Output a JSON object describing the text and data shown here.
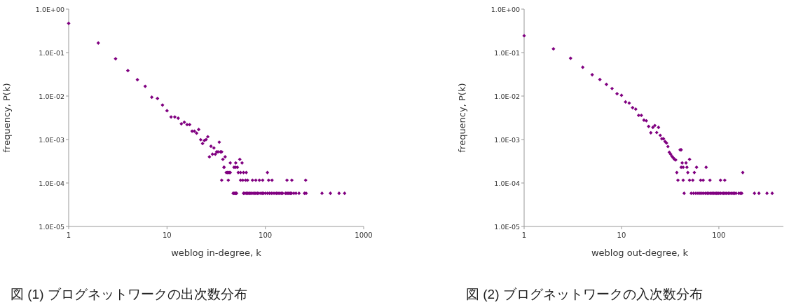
{
  "chart_data": [
    {
      "type": "scatter",
      "xlabel": "weblog in-degree, k",
      "ylabel": "frequency, P(k)",
      "log": "xy",
      "grid": false,
      "marker": "diamond",
      "xlim": [
        1,
        1000
      ],
      "xticks": [
        1,
        10,
        100,
        1000
      ],
      "ylim": [
        1e-05,
        1
      ],
      "yticks": [
        {
          "value": 1,
          "label": "1.0E+00"
        },
        {
          "value": 0.1,
          "label": "1.0E-01"
        },
        {
          "value": 0.01,
          "label": "1.0E-02"
        },
        {
          "value": 0.001,
          "label": "1.0E-03"
        },
        {
          "value": 0.0001,
          "label": "1.0E-04"
        },
        {
          "value": 1e-05,
          "label": "1.0E-05"
        }
      ],
      "annotations": [
        "図 (1) ブログネットワークの出次数分布"
      ],
      "series": [
        {
          "color": "#800080",
          "x": [
            1,
            2,
            3,
            4,
            5,
            6,
            7,
            8,
            9,
            10,
            11,
            12,
            13,
            14,
            15,
            16,
            17,
            18,
            19,
            20,
            21,
            22,
            23,
            24,
            25,
            26,
            27,
            28,
            29,
            30,
            31,
            32,
            33,
            34,
            35,
            36,
            37,
            38,
            39,
            36,
            42,
            56,
            59,
            63,
            66,
            74,
            80,
            87,
            94,
            108,
            117,
            166,
            186,
            257,
            40,
            41,
            42,
            43,
            44,
            53,
            56,
            60,
            64,
            105,
            38,
            48,
            50,
            52,
            44,
            50,
            58,
            55,
            47,
            48,
            49,
            50,
            51,
            60,
            62,
            64,
            66,
            68,
            70,
            72,
            75,
            78,
            80,
            83,
            86,
            90,
            93,
            96,
            100,
            105,
            110,
            115,
            120,
            125,
            130,
            135,
            140,
            145,
            150,
            160,
            165,
            170,
            175,
            180,
            185,
            195,
            205,
            220,
            250,
            260,
            377,
            459,
            562,
            640
          ],
          "values": [
            0.47,
            0.166,
            0.072,
            0.0385,
            0.0238,
            0.0168,
            0.0094,
            0.0088,
            0.0062,
            0.0046,
            0.0033,
            0.0033,
            0.0031,
            0.0023,
            0.0025,
            0.0022,
            0.0022,
            0.00156,
            0.00156,
            0.0014,
            0.0017,
            0.00099,
            0.00081,
            0.00095,
            0.001,
            0.00116,
            0.0004,
            0.0007,
            0.00046,
            0.00064,
            0.00046,
            0.00052,
            0.00052,
            0.00087,
            0.00052,
            0.00052,
            0.00035,
            0.00023,
            0.0004,
            0.000116,
            0.000116,
            0.000116,
            0.000116,
            0.000116,
            0.000116,
            0.000116,
            0.000116,
            0.000116,
            0.000116,
            0.000116,
            0.000116,
            0.000116,
            0.000116,
            0.000116,
            0.000174,
            0.000174,
            0.000174,
            0.000174,
            0.000174,
            0.000174,
            0.000174,
            0.000174,
            0.000174,
            0.000174,
            0.00023,
            0.00023,
            0.00023,
            0.00023,
            0.00029,
            0.00029,
            0.00029,
            0.00035,
            5.8e-05,
            5.8e-05,
            5.8e-05,
            5.8e-05,
            5.8e-05,
            5.8e-05,
            5.8e-05,
            5.8e-05,
            5.8e-05,
            5.8e-05,
            5.8e-05,
            5.8e-05,
            5.8e-05,
            5.8e-05,
            5.8e-05,
            5.8e-05,
            5.8e-05,
            5.8e-05,
            5.8e-05,
            5.8e-05,
            5.8e-05,
            5.8e-05,
            5.8e-05,
            5.8e-05,
            5.8e-05,
            5.8e-05,
            5.8e-05,
            5.8e-05,
            5.8e-05,
            5.8e-05,
            5.8e-05,
            5.8e-05,
            5.8e-05,
            5.8e-05,
            5.8e-05,
            5.8e-05,
            5.8e-05,
            5.8e-05,
            5.8e-05,
            5.8e-05,
            5.8e-05,
            5.8e-05,
            5.8e-05,
            5.8e-05,
            5.8e-05,
            5.8e-05
          ]
        }
      ]
    },
    {
      "type": "scatter",
      "xlabel": "weblog out-degree, k",
      "ylabel": "frequency, P(k)",
      "log": "xy",
      "grid": false,
      "marker": "diamond",
      "xlim": [
        1,
        460
      ],
      "xticks": [
        1,
        10,
        100
      ],
      "ylim": [
        1e-05,
        1
      ],
      "yticks": [
        {
          "value": 1,
          "label": "1.0E+00"
        },
        {
          "value": 0.1,
          "label": "1.0E-01"
        },
        {
          "value": 0.01,
          "label": "1.0E-02"
        },
        {
          "value": 0.001,
          "label": "1.0E-03"
        },
        {
          "value": 0.0001,
          "label": "1.0E-04"
        },
        {
          "value": 1e-05,
          "label": "1.0E-05"
        }
      ],
      "annotations": [
        "図 (2) ブログネットワークの入次数分布"
      ],
      "series": [
        {
          "color": "#800080",
          "x": [
            1,
            2,
            3,
            4,
            5,
            6,
            7,
            8,
            9,
            10,
            11,
            12,
            13,
            14,
            15,
            16,
            17,
            18,
            19,
            20,
            21,
            22,
            23,
            24,
            25,
            26,
            27,
            28,
            29,
            30,
            31,
            32,
            33,
            34,
            35,
            36,
            40,
            41,
            38,
            43,
            50,
            54,
            65,
            69,
            81,
            104,
            115,
            37,
            48,
            56,
            176,
            41,
            43,
            47,
            59,
            74,
            42,
            46,
            50,
            44,
            52,
            55,
            58,
            61,
            64,
            67,
            70,
            73,
            76,
            79,
            82,
            85,
            88,
            91,
            94,
            97,
            100,
            104,
            108,
            112,
            116,
            120,
            125,
            130,
            135,
            140,
            145,
            150,
            160,
            166,
            172,
            232,
            258,
            312,
            353
          ],
          "values": [
            0.244,
            0.122,
            0.074,
            0.046,
            0.031,
            0.024,
            0.0186,
            0.0149,
            0.0113,
            0.0104,
            0.0073,
            0.0069,
            0.0054,
            0.005,
            0.0036,
            0.0036,
            0.0028,
            0.0027,
            0.002,
            0.00143,
            0.0019,
            0.0021,
            0.00145,
            0.0019,
            0.00125,
            0.00104,
            0.00104,
            0.0009,
            0.00083,
            0.00069,
            0.00051,
            0.00046,
            0.00041,
            0.00038,
            0.00035,
            0.00034,
            0.00058,
            0.00058,
            0.000116,
            0.000116,
            0.000116,
            0.000116,
            0.000116,
            0.000116,
            0.000116,
            0.000116,
            0.000116,
            0.000174,
            0.000174,
            0.000174,
            0.000174,
            0.00023,
            0.00023,
            0.00023,
            0.00023,
            0.00023,
            0.00029,
            0.00029,
            0.00035,
            5.8e-05,
            5.8e-05,
            5.8e-05,
            5.8e-05,
            5.8e-05,
            5.8e-05,
            5.8e-05,
            5.8e-05,
            5.8e-05,
            5.8e-05,
            5.8e-05,
            5.8e-05,
            5.8e-05,
            5.8e-05,
            5.8e-05,
            5.8e-05,
            5.8e-05,
            5.8e-05,
            5.8e-05,
            5.8e-05,
            5.8e-05,
            5.8e-05,
            5.8e-05,
            5.8e-05,
            5.8e-05,
            5.8e-05,
            5.8e-05,
            5.8e-05,
            5.8e-05,
            5.8e-05,
            5.8e-05,
            5.8e-05,
            5.8e-05,
            5.8e-05,
            5.8e-05,
            5.8e-05
          ]
        }
      ]
    }
  ]
}
